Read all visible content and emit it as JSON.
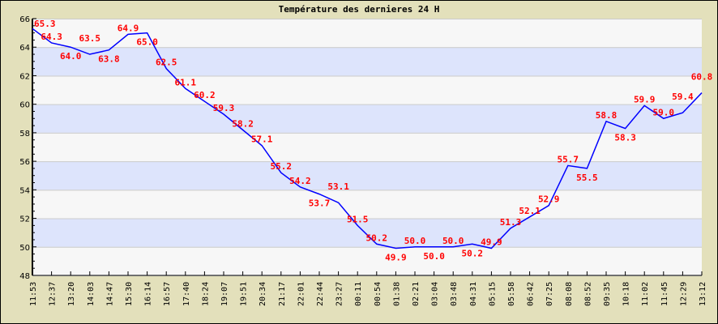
{
  "chart_data": {
    "type": "line",
    "title": "Température des dernieres 24 H",
    "xlabel": "",
    "ylabel": "",
    "ylim": [
      48,
      66
    ],
    "yticks": [
      48,
      50,
      52,
      54,
      56,
      58,
      60,
      62,
      64,
      66
    ],
    "grid": true,
    "categories": [
      "11:53",
      "12:37",
      "13:20",
      "14:03",
      "14:47",
      "15:30",
      "16:14",
      "16:57",
      "17:40",
      "18:24",
      "19:07",
      "19:51",
      "20:34",
      "21:17",
      "22:01",
      "22:44",
      "23:27",
      "00:11",
      "00:54",
      "01:38",
      "02:21",
      "03:04",
      "03:48",
      "04:31",
      "05:15",
      "05:58",
      "06:42",
      "07:25",
      "08:08",
      "08:52",
      "09:35",
      "10:18",
      "11:02",
      "11:45",
      "12:29",
      "13:12"
    ],
    "values": [
      65.3,
      64.3,
      64.0,
      63.5,
      63.8,
      64.9,
      65.0,
      62.5,
      61.1,
      60.2,
      59.3,
      58.2,
      57.1,
      55.2,
      54.2,
      53.7,
      53.1,
      51.5,
      50.2,
      49.9,
      50.0,
      50.0,
      50.0,
      50.2,
      49.9,
      51.3,
      52.1,
      52.9,
      55.7,
      55.5,
      58.8,
      58.3,
      59.9,
      59.0,
      59.4,
      60.8
    ],
    "colors": {
      "line": "#0000ff",
      "labels": "#ff0000",
      "band_a": "#f7f7f7",
      "band_b": "#dde4fc",
      "background": "#e3e0bb"
    }
  }
}
